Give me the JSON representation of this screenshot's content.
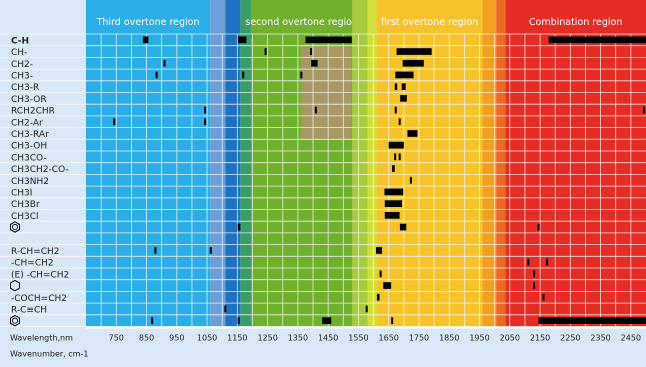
{
  "chart_data": {
    "type": "bar",
    "orientation": "horizontal-range",
    "x_axis": {
      "label": "Wavelength,nm",
      "range": [
        650,
        2500
      ],
      "ticks": [
        750,
        850,
        950,
        1050,
        1150,
        1250,
        1350,
        1450,
        1550,
        1650,
        1750,
        1850,
        1950,
        2050,
        2150,
        2250,
        2350,
        2450
      ],
      "tick_labels": [
        "750",
        "850",
        "950",
        "1050",
        "1150",
        "1250",
        "1350",
        "1450",
        "1550",
        "1650",
        "1750",
        "1850",
        "1950",
        "2050",
        "2150",
        "2250",
        "2350",
        "2450"
      ]
    },
    "secondary_axis_label": "Wavenumber, cm-1",
    "grid": true,
    "regions": [
      {
        "name": "Third overtone region",
        "from": 650,
        "to": 1060,
        "color": "#2baee8"
      },
      {
        "name": "",
        "from": 1060,
        "to": 1110,
        "color": "#6c9fd8"
      },
      {
        "name": "",
        "from": 1110,
        "to": 1160,
        "color": "#1e72c2"
      },
      {
        "name": "",
        "from": 1160,
        "to": 1195,
        "color": "#3a9c6a"
      },
      {
        "name": "second overtone region",
        "from": 1195,
        "to": 1530,
        "color": "#6fb02c"
      },
      {
        "name": "",
        "from": 1530,
        "to": 1580,
        "color": "#a6cc3e"
      },
      {
        "name": "",
        "from": 1580,
        "to": 1610,
        "color": "#d1df3a"
      },
      {
        "name": "first overtone region",
        "from": 1610,
        "to": 1960,
        "color": "#f6c32b"
      },
      {
        "name": "",
        "from": 1960,
        "to": 2005,
        "color": "#f29e1f"
      },
      {
        "name": "",
        "from": 2005,
        "to": 2035,
        "color": "#ec6a23"
      },
      {
        "name": "Combination region",
        "from": 2035,
        "to": 2500,
        "color": "#e52d26"
      }
    ],
    "highlight_boxes": [
      {
        "from": 1360,
        "to": 1525,
        "rows": [
          1,
          4
        ],
        "color": "#a89866"
      },
      {
        "from": 1360,
        "to": 1525,
        "rows": [
          5,
          8
        ],
        "color": "#a89866"
      }
    ],
    "rows": [
      {
        "label": "C-H",
        "bold": true,
        "bars": [
          [
            838,
            856
          ],
          [
            1152,
            1180
          ],
          [
            1375,
            1528
          ],
          [
            2178,
            2500
          ]
        ]
      },
      {
        "label": "CH-",
        "bars": [
          [
            1240,
            1243
          ],
          [
            1390,
            1394
          ],
          [
            1676,
            1792
          ]
        ]
      },
      {
        "label": "CH2-",
        "bars": [
          [
            906,
            909
          ],
          [
            1394,
            1415
          ],
          [
            1696,
            1766
          ]
        ]
      },
      {
        "label": "CH3-",
        "bars": [
          [
            880,
            883
          ],
          [
            1166,
            1170
          ],
          [
            1358,
            1362
          ],
          [
            1672,
            1732
          ]
        ]
      },
      {
        "label": "CH3-R",
        "bars": [
          [
            1670,
            1678
          ],
          [
            1693,
            1706
          ]
        ]
      },
      {
        "label": "CH3-OR",
        "bars": [
          [
            1688,
            1710
          ]
        ]
      },
      {
        "label": "RCH2CHR",
        "bars": [
          [
            1040,
            1044
          ],
          [
            1406,
            1409
          ],
          [
            1670,
            1675
          ],
          [
            2490,
            2493
          ]
        ]
      },
      {
        "label": "CH2-Ar",
        "bars": [
          [
            740,
            743
          ],
          [
            1040,
            1044
          ],
          [
            1683,
            1686
          ]
        ]
      },
      {
        "label": "CH3-RAr",
        "bars": [
          [
            1712,
            1745
          ]
        ]
      },
      {
        "label": "CH3-OH",
        "bars": [
          [
            1650,
            1700
          ]
        ]
      },
      {
        "label": "CH3CO-",
        "bars": [
          [
            1668,
            1672
          ],
          [
            1683,
            1687
          ]
        ]
      },
      {
        "label": "CH3CH2-CO-",
        "bars": [
          [
            1661,
            1670
          ]
        ]
      },
      {
        "label": "CH3NH2",
        "bars": [
          [
            1720,
            1723
          ]
        ]
      },
      {
        "label": "CH3I",
        "bars": [
          [
            1636,
            1698
          ]
        ]
      },
      {
        "label": "CH3Br",
        "bars": [
          [
            1637,
            1694
          ]
        ]
      },
      {
        "label": "CH3Cl",
        "bars": [
          [
            1637,
            1686
          ]
        ]
      },
      {
        "label": "benzene",
        "icon": "benzene-ring-icon",
        "bars": [
          [
            1151,
            1160
          ],
          [
            1687,
            1708
          ],
          [
            2142,
            2146
          ]
        ]
      },
      {
        "label": "",
        "bars": []
      },
      {
        "label": "R-CH=CH2",
        "bars": [
          [
            876,
            880
          ],
          [
            1059,
            1063
          ],
          [
            1608,
            1628
          ]
        ]
      },
      {
        "label": "-CH=CH2",
        "bars": [
          [
            2108,
            2111
          ],
          [
            2170,
            2173
          ]
        ]
      },
      {
        "label": "(E) -CH=CH2",
        "bars": [
          [
            1620,
            1625
          ],
          [
            2127,
            2131
          ]
        ]
      },
      {
        "label": "cyclohexene",
        "icon": "cyclohexene-ring-icon",
        "bars": [
          [
            1632,
            1658
          ],
          [
            2127,
            2131
          ]
        ]
      },
      {
        "label": "-COCH=CH2",
        "bars": [
          [
            1611,
            1620
          ],
          [
            2158,
            2163
          ]
        ]
      },
      {
        "label": "R-C≡CH",
        "bars": [
          [
            1107,
            1111
          ],
          [
            1574,
            1578
          ]
        ]
      },
      {
        "label": "benzene",
        "icon": "benzene-ring-icon",
        "bars": [
          [
            865,
            868
          ],
          [
            1151,
            1156
          ],
          [
            1430,
            1460
          ],
          [
            1658,
            1661
          ],
          [
            2145,
            2500
          ]
        ]
      }
    ]
  }
}
